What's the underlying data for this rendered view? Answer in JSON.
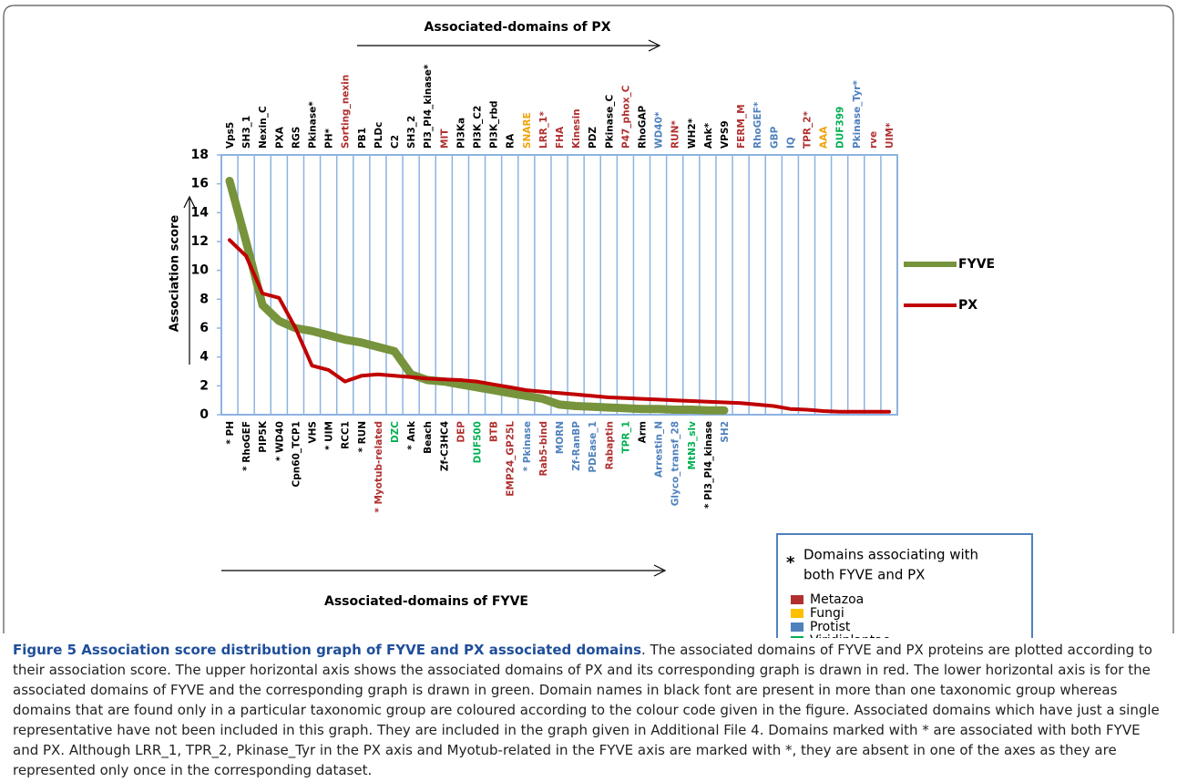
{
  "chart_data": {
    "type": "line",
    "top_annotation": "Associated-domains of PX",
    "bottom_annotation": "Associated-domains of FYVE",
    "y_label": "Association score",
    "ylim": [
      0,
      18
    ],
    "yticks": [
      0,
      2,
      4,
      6,
      8,
      10,
      12,
      14,
      16,
      18
    ],
    "series": [
      {
        "name": "FYVE",
        "color": "#77933c",
        "category_axis": "bottom",
        "categories": [
          "* PH",
          "* RhoGEF",
          "PIP5K",
          "* WD40",
          "Cpn60_TCP1",
          "VHS",
          "* UIM",
          "RCC1",
          "* RUN",
          "* Myotub-related",
          "DZC",
          "* Ank",
          "Beach",
          "Zf-C3HC4",
          "DEP",
          "DUF500",
          "BTB",
          "EMP24_GP25L",
          "* Pkinase",
          "Rab5-bind",
          "MORN",
          "Zf-RanBP",
          "PDEase_1",
          "Rabaptin",
          "TPR_1",
          "Arm",
          "Arrestin_N",
          "Glyco_transf_28",
          "MtN3_slv",
          "* PI3_PI4_kinase",
          "SH2"
        ],
        "category_colors": [
          "#000000",
          "#000000",
          "#000000",
          "#000000",
          "#000000",
          "#000000",
          "#000000",
          "#000000",
          "#000000",
          "#b03030",
          "#00b050",
          "#000000",
          "#000000",
          "#000000",
          "#b03030",
          "#00b050",
          "#b03030",
          "#b03030",
          "#4f81bd",
          "#b03030",
          "#4f81bd",
          "#4f81bd",
          "#4f81bd",
          "#b03030",
          "#00b050",
          "#000000",
          "#4f81bd",
          "#4f81bd",
          "#00b050",
          "#000000",
          "#4f81bd"
        ],
        "values": [
          16.2,
          12,
          7.6,
          6.5,
          6.0,
          5.8,
          5.5,
          5.2,
          5.0,
          4.7,
          4.4,
          2.8,
          2.4,
          2.3,
          2.1,
          1.9,
          1.7,
          1.5,
          1.3,
          1.1,
          0.7,
          0.6,
          0.55,
          0.5,
          0.45,
          0.4,
          0.4,
          0.35,
          0.35,
          0.3,
          0.3
        ]
      },
      {
        "name": "PX",
        "color": "#c00000",
        "category_axis": "top",
        "categories": [
          "Vps5",
          "SH3_1",
          "Nexin_C",
          "PXA",
          "RGS",
          "Pkinase*",
          "PH*",
          "Sorting_nexin",
          "PB1",
          "PLDc",
          "C2",
          "SH3_2",
          "PI3_PI4_kinase*",
          "MIT",
          "PI3Ka",
          "PI3K_C2",
          "PI3K_rbd",
          "RA",
          "SNARE",
          "LRR_1*",
          "FHA",
          "Kinesin",
          "PDZ",
          "Pkinase_C",
          "P47_phox_C",
          "RhoGAP",
          "WD40*",
          "RUN*",
          "WH2*",
          "Ank*",
          "VPS9",
          "FERM_M",
          "RhoGEF*",
          "GBP",
          "IQ",
          "TPR_2*",
          "AAA",
          "DUF399",
          "Pkinase_Tyr*",
          "rve",
          "UIM*"
        ],
        "category_colors": [
          "#000000",
          "#000000",
          "#000000",
          "#000000",
          "#000000",
          "#000000",
          "#000000",
          "#b03030",
          "#000000",
          "#000000",
          "#000000",
          "#000000",
          "#000000",
          "#b03030",
          "#000000",
          "#000000",
          "#000000",
          "#000000",
          "#f0a30a",
          "#b03030",
          "#b03030",
          "#b03030",
          "#000000",
          "#000000",
          "#b03030",
          "#000000",
          "#4f81bd",
          "#b03030",
          "#000000",
          "#000000",
          "#000000",
          "#b03030",
          "#4f81bd",
          "#4f81bd",
          "#4f81bd",
          "#b03030",
          "#f0a30a",
          "#00b050",
          "#4f81bd",
          "#b03030",
          "#b03030"
        ],
        "values": [
          12.1,
          11.0,
          8.4,
          8.1,
          6.0,
          3.4,
          3.1,
          2.3,
          2.7,
          2.8,
          2.7,
          2.6,
          2.5,
          2.45,
          2.4,
          2.3,
          2.1,
          1.9,
          1.7,
          1.6,
          1.5,
          1.4,
          1.3,
          1.2,
          1.15,
          1.1,
          1.05,
          1.0,
          0.95,
          0.9,
          0.85,
          0.8,
          0.7,
          0.6,
          0.4,
          0.35,
          0.25,
          0.2,
          0.2,
          0.2,
          0.2
        ]
      }
    ],
    "taxa_legend": {
      "marker": "*",
      "note_lines": [
        "Domains associating with",
        "both FYVE and PX"
      ],
      "items": [
        {
          "name": "Metazoa",
          "color": "#b03030"
        },
        {
          "name": "Fungi",
          "color": "#ffc000"
        },
        {
          "name": "Protist",
          "color": "#4f81bd"
        },
        {
          "name": "Viridiplantae",
          "color": "#00b050"
        }
      ]
    }
  },
  "caption": {
    "title": "Figure 5 Association score distribution graph of FYVE and PX associated domains",
    "text": ". The associated domains of FYVE and PX proteins are plotted according to their association score. The upper horizontal axis shows the associated domains of PX and its corresponding graph is drawn in red. The lower horizontal axis is for the associated domains of FYVE and the corresponding graph is drawn in green. Domain names in black font are present in more than one taxonomic group whereas domains that are found only in a particular taxonomic group are coloured according to the colour code given in the figure. Associated domains which have just a single representative have not been included in this graph. They are included in the graph given in Additional File 4. Domains marked with * are associated with both FYVE and PX. Although LRR_1, TPR_2, Pkinase_Tyr in the PX axis and Myotub-related in the FYVE axis are marked with *, they are absent in one of the axes as they are represented only once in the corresponding dataset."
  }
}
